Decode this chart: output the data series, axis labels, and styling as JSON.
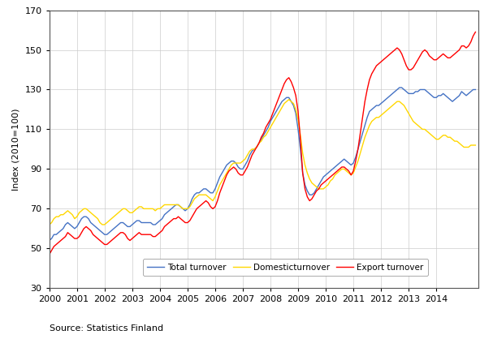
{
  "title": "",
  "ylabel": "Index (2010=100)",
  "xlabel": "",
  "source": "Source: Statistics Finland",
  "ylim": [
    30,
    170
  ],
  "yticks": [
    30,
    50,
    70,
    90,
    110,
    130,
    150,
    170
  ],
  "line_colors": {
    "total": "#4472C4",
    "domestic": "#FFD700",
    "export": "#FF0000"
  },
  "legend_labels": [
    "Total turnover",
    "Domesticturnover",
    "Export turnover"
  ],
  "background_color": "#FFFFFF",
  "total_turnover": [
    54,
    55,
    57,
    57,
    58,
    59,
    60,
    62,
    63,
    62,
    61,
    60,
    61,
    63,
    65,
    66,
    66,
    65,
    63,
    62,
    61,
    60,
    59,
    58,
    57,
    57,
    58,
    59,
    60,
    61,
    62,
    63,
    63,
    62,
    61,
    61,
    62,
    63,
    64,
    64,
    63,
    63,
    63,
    63,
    63,
    62,
    62,
    63,
    64,
    65,
    67,
    68,
    69,
    70,
    71,
    72,
    72,
    71,
    70,
    69,
    70,
    72,
    75,
    77,
    78,
    78,
    79,
    80,
    80,
    79,
    78,
    78,
    80,
    83,
    86,
    88,
    90,
    92,
    93,
    94,
    94,
    93,
    91,
    90,
    90,
    92,
    94,
    97,
    99,
    100,
    101,
    103,
    105,
    107,
    109,
    111,
    114,
    116,
    118,
    120,
    122,
    124,
    125,
    126,
    126,
    124,
    122,
    118,
    110,
    100,
    88,
    82,
    79,
    77,
    77,
    78,
    80,
    82,
    84,
    86,
    87,
    88,
    89,
    90,
    91,
    92,
    93,
    94,
    95,
    94,
    93,
    92,
    93,
    96,
    100,
    104,
    108,
    112,
    116,
    119,
    120,
    121,
    122,
    122,
    123,
    124,
    125,
    126,
    127,
    128,
    129,
    130,
    131,
    131,
    130,
    129,
    128,
    128,
    128,
    129,
    129,
    130,
    130,
    130,
    129,
    128,
    127,
    126,
    126,
    127,
    127,
    128,
    127,
    126,
    125,
    124,
    125,
    126,
    127,
    129,
    128,
    127,
    128,
    129,
    130,
    130
  ],
  "domestic_turnover": [
    62,
    63,
    65,
    66,
    66,
    67,
    67,
    68,
    69,
    68,
    67,
    65,
    66,
    68,
    69,
    70,
    70,
    69,
    68,
    67,
    66,
    65,
    63,
    62,
    62,
    63,
    64,
    65,
    66,
    67,
    68,
    69,
    70,
    70,
    69,
    68,
    68,
    69,
    70,
    71,
    71,
    70,
    70,
    70,
    70,
    70,
    69,
    70,
    70,
    71,
    72,
    72,
    72,
    72,
    72,
    72,
    72,
    71,
    70,
    70,
    70,
    71,
    73,
    75,
    76,
    77,
    77,
    77,
    77,
    76,
    75,
    74,
    76,
    79,
    82,
    84,
    86,
    88,
    90,
    92,
    93,
    93,
    93,
    93,
    94,
    95,
    97,
    99,
    100,
    100,
    101,
    103,
    104,
    106,
    107,
    109,
    111,
    113,
    115,
    117,
    119,
    121,
    123,
    124,
    125,
    124,
    123,
    120,
    115,
    107,
    98,
    92,
    88,
    85,
    83,
    82,
    81,
    80,
    80,
    80,
    81,
    82,
    84,
    85,
    87,
    88,
    89,
    90,
    90,
    89,
    88,
    87,
    88,
    91,
    94,
    98,
    102,
    106,
    109,
    112,
    114,
    115,
    116,
    116,
    117,
    118,
    119,
    120,
    121,
    122,
    123,
    124,
    124,
    123,
    122,
    120,
    118,
    116,
    114,
    113,
    112,
    111,
    110,
    110,
    109,
    108,
    107,
    106,
    105,
    105,
    106,
    107,
    107,
    106,
    106,
    105,
    104,
    104,
    103,
    102,
    101,
    101,
    101,
    102,
    102,
    102
  ],
  "export_turnover": [
    47,
    49,
    51,
    52,
    53,
    54,
    55,
    56,
    58,
    57,
    56,
    55,
    55,
    56,
    58,
    60,
    61,
    60,
    59,
    57,
    56,
    55,
    54,
    53,
    52,
    52,
    53,
    54,
    55,
    56,
    57,
    58,
    58,
    57,
    55,
    54,
    55,
    56,
    57,
    58,
    57,
    57,
    57,
    57,
    57,
    56,
    56,
    57,
    58,
    59,
    61,
    62,
    63,
    64,
    65,
    65,
    66,
    65,
    64,
    63,
    63,
    64,
    66,
    68,
    70,
    71,
    72,
    73,
    74,
    73,
    71,
    70,
    71,
    74,
    78,
    81,
    84,
    87,
    89,
    90,
    91,
    90,
    88,
    87,
    87,
    89,
    91,
    94,
    97,
    99,
    101,
    103,
    106,
    108,
    111,
    113,
    115,
    118,
    121,
    124,
    127,
    130,
    133,
    135,
    136,
    134,
    131,
    127,
    119,
    105,
    88,
    80,
    76,
    74,
    75,
    77,
    79,
    80,
    82,
    83,
    84,
    85,
    86,
    87,
    88,
    89,
    90,
    91,
    91,
    90,
    89,
    87,
    89,
    94,
    100,
    108,
    116,
    124,
    130,
    135,
    138,
    140,
    142,
    143,
    144,
    145,
    146,
    147,
    148,
    149,
    150,
    151,
    150,
    148,
    145,
    142,
    140,
    140,
    141,
    143,
    145,
    147,
    149,
    150,
    149,
    147,
    146,
    145,
    145,
    146,
    147,
    148,
    147,
    146,
    146,
    147,
    148,
    149,
    150,
    152,
    152,
    151,
    152,
    154,
    157,
    159
  ]
}
